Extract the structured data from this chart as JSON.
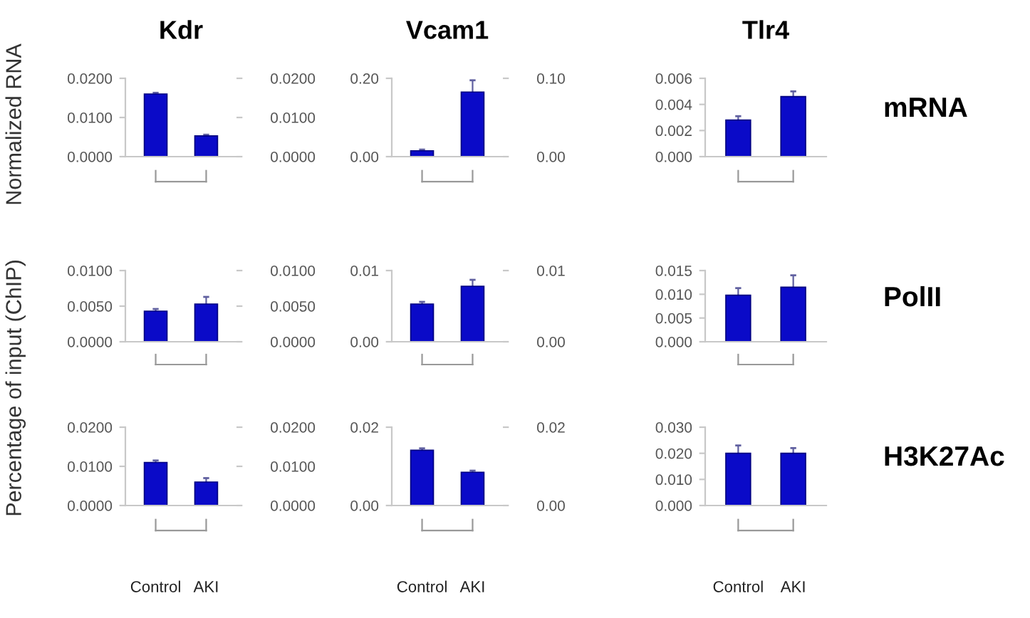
{
  "chart_data": [
    {
      "type": "bar",
      "title": "Kdr",
      "ylabel": "Normalized RNA",
      "categories": [
        null,
        null
      ],
      "values": [
        0.016,
        0.0053
      ],
      "errors": [
        0.0003,
        0.0003
      ],
      "color": "#0a0ac8",
      "ylim": [
        0,
        0.02
      ],
      "yticks": [
        {
          "value": 0,
          "label": "0.0000"
        },
        {
          "value": 0.01,
          "label": "0.0100"
        },
        {
          "value": 0.02,
          "label": "0.0200"
        }
      ],
      "y2lim": [
        0,
        0.02
      ],
      "y2ticks": [
        {
          "value": 0,
          "label": "0.0000"
        },
        {
          "value": 0.01,
          "label": "0.0100"
        },
        {
          "value": 0.02,
          "label": "0.0200"
        }
      ],
      "tick_labels": "y"
    },
    {
      "type": "bar",
      "title": "Vcam1",
      "categories": [
        null,
        null
      ],
      "values": [
        0.015,
        0.165
      ],
      "errors": [
        0.003,
        0.03
      ],
      "color": "#0a0ac8",
      "ylim": [
        0,
        0.2
      ],
      "yticks": [
        {
          "value": 0,
          "label": "0.00"
        },
        {
          "value": 0.2,
          "label": "0.20"
        }
      ],
      "y2lim": [
        0,
        0.1
      ],
      "y2ticks": [
        {
          "value": 0,
          "label": "0.00"
        },
        {
          "value": 0.1,
          "label": "0.10"
        }
      ],
      "tick_labels": "y"
    },
    {
      "type": "bar",
      "title": "Tlr4",
      "categories": [
        null,
        null
      ],
      "values": [
        0.0028,
        0.0046
      ],
      "errors": [
        0.0003,
        0.0004
      ],
      "color": "#0a0ac8",
      "ylim": [
        0,
        0.006
      ],
      "yticks": [
        {
          "value": 0,
          "label": "0.000"
        },
        {
          "value": 0.002,
          "label": "0.002"
        },
        {
          "value": 0.004,
          "label": "0.004"
        },
        {
          "value": 0.006,
          "label": "0.006"
        }
      ],
      "tick_labels": "y",
      "annotations": [
        "mRNA"
      ]
    },
    {
      "type": "bar",
      "ylabel": "Percentage of input (ChIP)",
      "categories": [
        null,
        null
      ],
      "values": [
        0.0043,
        0.0053
      ],
      "errors": [
        0.0003,
        0.001
      ],
      "color": "#0a0ac8",
      "ylim": [
        0,
        0.01
      ],
      "yticks": [
        {
          "value": 0,
          "label": "0.0000"
        },
        {
          "value": 0.005,
          "label": "0.0050"
        },
        {
          "value": 0.01,
          "label": "0.0100"
        }
      ],
      "y2lim": [
        0,
        0.01
      ],
      "y2ticks": [
        {
          "value": 0,
          "label": "0.0000"
        },
        {
          "value": 0.005,
          "label": "0.0050"
        },
        {
          "value": 0.01,
          "label": "0.0100"
        }
      ],
      "tick_labels": "y"
    },
    {
      "type": "bar",
      "categories": [
        null,
        null
      ],
      "values": [
        0.0053,
        0.0078
      ],
      "errors": [
        0.0003,
        0.0009
      ],
      "color": "#0a0ac8",
      "ylim": [
        0,
        0.01
      ],
      "yticks": [
        {
          "value": 0,
          "label": "0.00"
        },
        0.01
      ],
      "y2lim": [
        0,
        0.01
      ],
      "y2ticks": [
        {
          "value": 0,
          "label": "0.00"
        },
        0.01
      ],
      "tick_labels": "y"
    },
    {
      "type": "bar",
      "categories": [
        null,
        null
      ],
      "values": [
        0.0098,
        0.0115
      ],
      "errors": [
        0.0015,
        0.0025
      ],
      "color": "#0a0ac8",
      "ylim": [
        0,
        0.015
      ],
      "yticks": [
        {
          "value": 0,
          "label": "0.000"
        },
        0.005,
        {
          "value": 0.01,
          "label": "0.010"
        },
        0.015
      ],
      "tick_labels": "y",
      "annotations": [
        "PolII"
      ]
    },
    {
      "type": "bar",
      "categories": [
        "Control",
        "AKI"
      ],
      "values": [
        0.011,
        0.006
      ],
      "errors": [
        0.0005,
        0.001
      ],
      "color": "#0a0ac8",
      "ylim": [
        0,
        0.02
      ],
      "yticks": [
        {
          "value": 0,
          "label": "0.0000"
        },
        {
          "value": 0.01,
          "label": "0.0100"
        },
        {
          "value": 0.02,
          "label": "0.0200"
        }
      ],
      "y2lim": [
        0,
        0.02
      ],
      "y2ticks": [
        {
          "value": 0,
          "label": "0.0000"
        },
        {
          "value": 0.01,
          "label": "0.0100"
        },
        {
          "value": 0.02,
          "label": "0.0200"
        }
      ]
    },
    {
      "type": "bar",
      "categories": [
        "Control",
        "AKI"
      ],
      "values": [
        0.0141,
        0.0085
      ],
      "errors": [
        0.0005,
        0.0004
      ],
      "color": "#0a0ac8",
      "ylim": [
        0,
        0.02
      ],
      "yticks": [
        {
          "value": 0,
          "label": "0.00"
        },
        0.02
      ],
      "y2lim": [
        0,
        0.02
      ],
      "y2ticks": [
        {
          "value": 0,
          "label": "0.00"
        },
        0.02
      ]
    },
    {
      "type": "bar",
      "categories": [
        "Control",
        "AKI"
      ],
      "values": [
        0.02,
        0.02
      ],
      "errors": [
        0.003,
        0.002
      ],
      "color": "#0a0ac8",
      "ylim": [
        0,
        0.03
      ],
      "yticks": [
        {
          "value": 0,
          "label": "0.000"
        },
        {
          "value": 0.01,
          "label": "0.010"
        },
        {
          "value": 0.02,
          "label": "0.020"
        },
        {
          "value": 0.03,
          "label": "0.030"
        }
      ],
      "annotations": [
        "H3K27Ac"
      ]
    }
  ]
}
